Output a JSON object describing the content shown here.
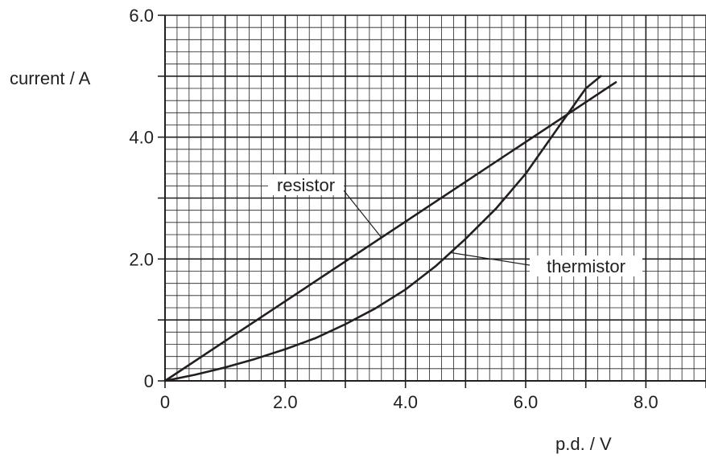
{
  "chart_data": {
    "type": "line",
    "title": "",
    "xlabel": "p.d. / V",
    "ylabel": "current / A",
    "xlim": [
      0,
      9.0
    ],
    "ylim": [
      0,
      6.0
    ],
    "grid": true,
    "x_minor_step": 0.2,
    "y_minor_step": 0.2,
    "x_tick_labels": [
      {
        "value": 0,
        "text": "0"
      },
      {
        "value": 2.0,
        "text": "2.0"
      },
      {
        "value": 4.0,
        "text": "4.0"
      },
      {
        "value": 6.0,
        "text": "6.0"
      },
      {
        "value": 8.0,
        "text": "8.0"
      }
    ],
    "y_tick_labels": [
      {
        "value": 0,
        "text": "0"
      },
      {
        "value": 2.0,
        "text": "2.0"
      },
      {
        "value": 4.0,
        "text": "4.0"
      },
      {
        "value": 6.0,
        "text": "6.0"
      }
    ],
    "series": [
      {
        "name": "resistor",
        "x": [
          0,
          7.5
        ],
        "y": [
          0,
          4.9
        ]
      },
      {
        "name": "thermistor",
        "x": [
          0,
          0.5,
          1.0,
          1.5,
          2.0,
          2.5,
          3.0,
          3.5,
          4.0,
          4.5,
          5.0,
          5.5,
          6.0,
          6.5,
          6.8,
          7.0,
          7.25
        ],
        "y": [
          0,
          0.1,
          0.22,
          0.36,
          0.52,
          0.7,
          0.93,
          1.19,
          1.5,
          1.88,
          2.33,
          2.82,
          3.4,
          4.1,
          4.52,
          4.8,
          5.0
        ]
      }
    ],
    "annotations": [
      {
        "text": "resistor",
        "target_series": "resistor",
        "target_x": 3.6
      },
      {
        "text": "thermistor",
        "target_series": "thermistor",
        "target_x": 4.75
      }
    ]
  }
}
